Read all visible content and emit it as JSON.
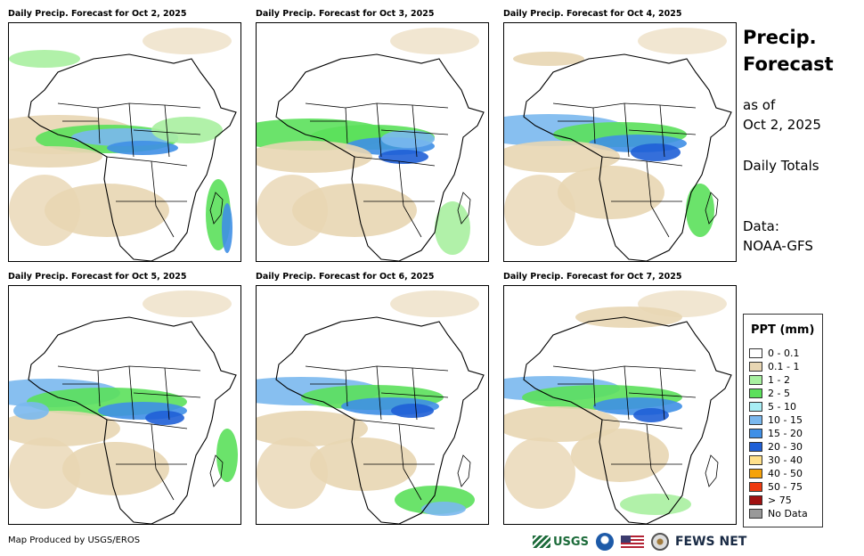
{
  "panels": [
    {
      "title": "Daily Precip. Forecast for Oct 2, 2025"
    },
    {
      "title": "Daily Precip. Forecast for Oct 3, 2025"
    },
    {
      "title": "Daily Precip. Forecast for Oct 4, 2025"
    },
    {
      "title": "Daily Precip. Forecast for Oct 5, 2025"
    },
    {
      "title": "Daily Precip. Forecast for Oct 6, 2025"
    },
    {
      "title": "Daily Precip. Forecast for Oct 7, 2025"
    }
  ],
  "side": {
    "title": "Precip. Forecast",
    "as_of_label": "as of",
    "as_of_date": "Oct 2, 2025",
    "totals": "Daily Totals",
    "data_label": "Data:",
    "data_source": "NOAA-GFS"
  },
  "legend": {
    "title": "PPT (mm)",
    "items": [
      {
        "label": "0 - 0.1",
        "color": "#ffffff"
      },
      {
        "label": "0.1 - 1",
        "color": "#e8d6b3"
      },
      {
        "label": "1 - 2",
        "color": "#a8f0a0"
      },
      {
        "label": "2 - 5",
        "color": "#5be05b"
      },
      {
        "label": "5 - 10",
        "color": "#a8eef5"
      },
      {
        "label": "10 - 15",
        "color": "#7ab8ee"
      },
      {
        "label": "15 - 20",
        "color": "#3f8fe6"
      },
      {
        "label": "20 - 30",
        "color": "#1f5fd6"
      },
      {
        "label": "30 - 40",
        "color": "#ffe08a"
      },
      {
        "label": "40 - 50",
        "color": "#f5a20a"
      },
      {
        "label": "50 - 75",
        "color": "#ee3a10"
      },
      {
        "label": "> 75",
        "color": "#a01010"
      },
      {
        "label": "No Data",
        "color": "#999999"
      }
    ]
  },
  "footer": {
    "credit": "Map Produced by USGS/EROS",
    "usgs": "USGS",
    "fews": "FEWS NET"
  }
}
